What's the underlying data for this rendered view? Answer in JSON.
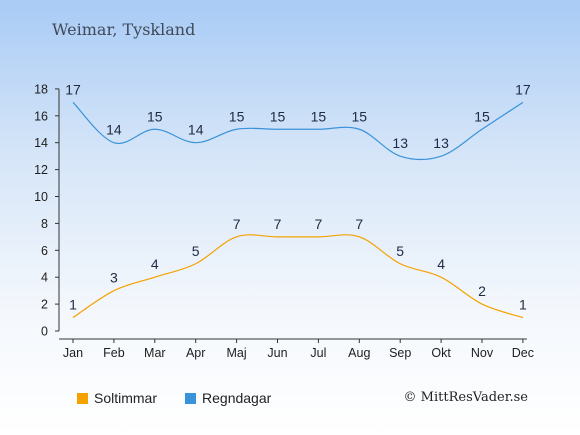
{
  "header": {
    "title": "Weimar, Tyskland"
  },
  "chart_data": {
    "type": "line",
    "categories": [
      "Jan",
      "Feb",
      "Mar",
      "Apr",
      "Maj",
      "Jun",
      "Jul",
      "Aug",
      "Sep",
      "Okt",
      "Nov",
      "Dec"
    ],
    "series": [
      {
        "name": "Soltimmar",
        "color": "#f5a100",
        "values": [
          1,
          3,
          4,
          5,
          7,
          7,
          7,
          7,
          5,
          4,
          2,
          1
        ]
      },
      {
        "name": "Regndagar",
        "color": "#3a93d8",
        "values": [
          17,
          14,
          15,
          14,
          15,
          15,
          15,
          15,
          13,
          13,
          15,
          17
        ]
      }
    ],
    "yticks": [
      "0",
      "2",
      "4",
      "6",
      "8",
      "10",
      "12",
      "14",
      "16",
      "18"
    ],
    "ylim": [
      0,
      18
    ],
    "grid": false,
    "legend_position": "bottom-left"
  },
  "legend": {
    "items": [
      {
        "label": "Soltimmar",
        "color": "#f5a100"
      },
      {
        "label": "Regndagar",
        "color": "#3a93d8"
      }
    ]
  },
  "footer": {
    "credit": "© MittResVader.se"
  }
}
